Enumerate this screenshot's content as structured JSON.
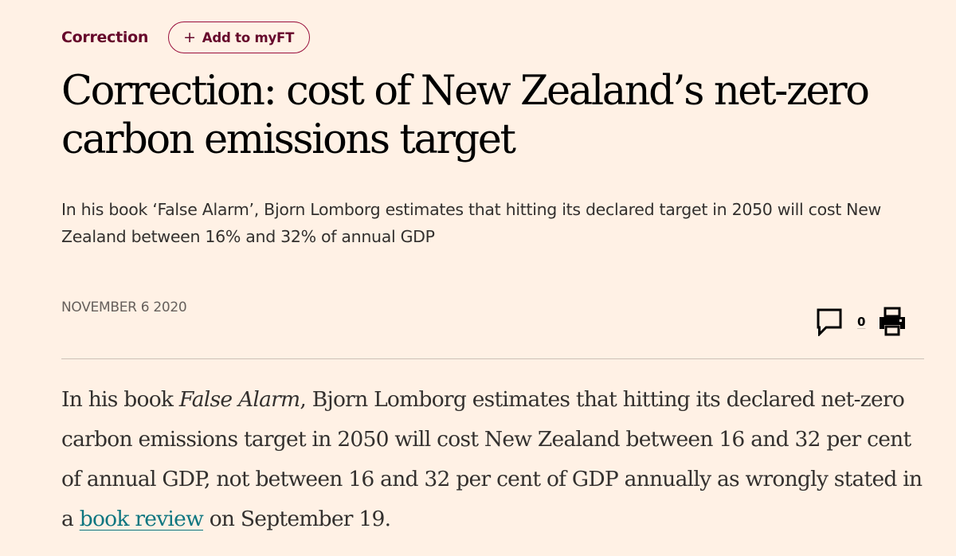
{
  "topic": {
    "label": "Correction",
    "myft_plus": "+",
    "myft_label": "Add to myFT"
  },
  "article": {
    "headline": "Correction: cost of New Zealand’s net-zero carbon emissions target",
    "standfirst": "In his book ‘False Alarm’, Bjorn Lomborg estimates that hitting its declared target in 2050 will cost New Zealand between 16% and 32% of annual GDP",
    "date": "NOVEMBER 6 2020",
    "body": {
      "part1": "In his book ",
      "book_title": "False Alarm",
      "part2": ", Bjorn Lomborg estimates that hitting its declared net-zero carbon emissions target in 2050 will cost New Zealand between 16 and 32 per cent of annual GDP, not between 16 and 32 per cent of GDP annually as wrongly stated in a ",
      "link_text": "book review",
      "part3": " on September 19."
    }
  },
  "tools": {
    "comment_icon": "speech-bubble-icon",
    "comment_count": "0",
    "print_icon": "printer-icon"
  },
  "colors": {
    "background": "#fff1e5",
    "topic": "#66082b",
    "button_border": "#990f3d",
    "link": "#0d7680",
    "divider": "#ccc1b7"
  }
}
